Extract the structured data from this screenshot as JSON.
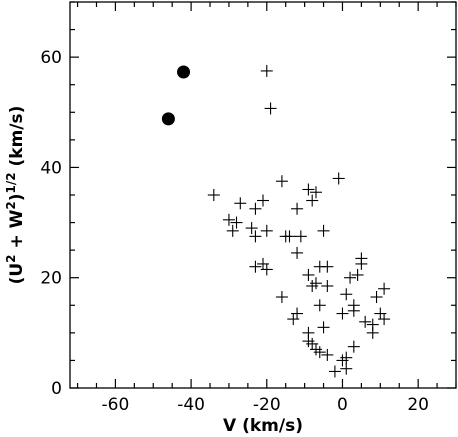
{
  "chart_data": {
    "type": "scatter",
    "title": "",
    "xlabel": "V (km/s)",
    "ylabel_parts": [
      "(U",
      "2",
      " + W",
      "2",
      ")",
      "1/2",
      " (km/s)"
    ],
    "xlim": [
      -72,
      30
    ],
    "ylim": [
      0,
      70
    ],
    "xticks": [
      -60,
      -40,
      -20,
      0,
      20
    ],
    "yticks": [
      0,
      20,
      40,
      60
    ],
    "grid": false,
    "legend": "none",
    "series": [
      {
        "marker": "plus",
        "color": "#000000",
        "points": [
          [
            -20,
            57.5
          ],
          [
            -19,
            50.7
          ],
          [
            -1,
            38
          ],
          [
            -34,
            35
          ],
          [
            -16,
            37.5
          ],
          [
            -9,
            36
          ],
          [
            -7,
            35.5
          ],
          [
            -8,
            34
          ],
          [
            -21,
            34
          ],
          [
            -27,
            33.5
          ],
          [
            -12,
            32.5
          ],
          [
            -23,
            32.5
          ],
          [
            -30,
            30.5
          ],
          [
            -28,
            30
          ],
          [
            -24,
            29
          ],
          [
            -29,
            28.5
          ],
          [
            -20,
            28.5
          ],
          [
            -5,
            28.5
          ],
          [
            -15,
            27.5
          ],
          [
            -11,
            27.5
          ],
          [
            -23,
            27.5
          ],
          [
            -14,
            27.5
          ],
          [
            -12,
            24.5
          ],
          [
            -21,
            22.5
          ],
          [
            -23,
            22
          ],
          [
            -20,
            21.5
          ],
          [
            5,
            23.5
          ],
          [
            5,
            22.5
          ],
          [
            -6,
            22
          ],
          [
            -4,
            22
          ],
          [
            -9,
            20.5
          ],
          [
            2,
            20
          ],
          [
            4,
            20.5
          ],
          [
            -7,
            19
          ],
          [
            -8,
            18.5
          ],
          [
            -4,
            18.5
          ],
          [
            11,
            18
          ],
          [
            1,
            17
          ],
          [
            -16,
            16.5
          ],
          [
            9,
            16.5
          ],
          [
            -6,
            15
          ],
          [
            3,
            15
          ],
          [
            3,
            14
          ],
          [
            0,
            13.5
          ],
          [
            -12,
            13.5
          ],
          [
            10,
            13.5
          ],
          [
            11,
            12.5
          ],
          [
            -13,
            12.5
          ],
          [
            6,
            12
          ],
          [
            -5,
            11
          ],
          [
            8,
            11.5
          ],
          [
            8,
            10
          ],
          [
            -9,
            10
          ],
          [
            -9,
            8.5
          ],
          [
            -8,
            8
          ],
          [
            3,
            7.5
          ],
          [
            -7,
            7
          ],
          [
            -6,
            6.5
          ],
          [
            -4,
            6
          ],
          [
            1,
            5.5
          ],
          [
            0,
            5
          ],
          [
            1,
            3.5
          ],
          [
            -2,
            3
          ]
        ]
      },
      {
        "marker": "filled-circle",
        "color": "#000000",
        "points": [
          [
            -42,
            57.3
          ],
          [
            -46,
            48.8
          ]
        ]
      }
    ]
  }
}
